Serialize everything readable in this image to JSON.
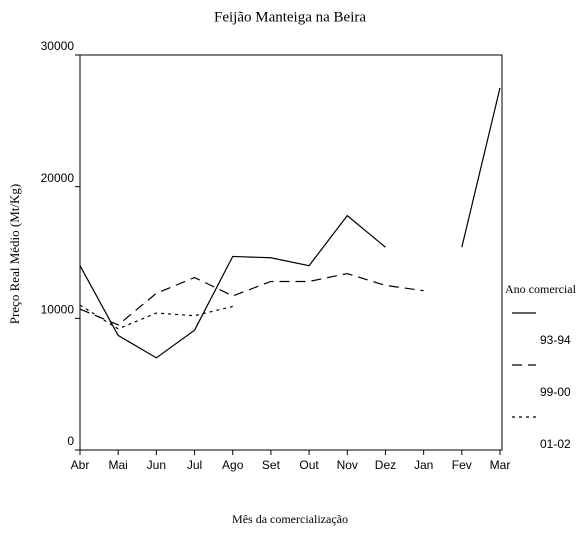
{
  "chart_data": {
    "type": "line",
    "title": "Feijão Manteiga na Beira",
    "xlabel": "Mês da comercialização",
    "ylabel": "Preço Real Médio (Mt/Kg)",
    "categories": [
      "Abr",
      "Mai",
      "Jun",
      "Jul",
      "Ago",
      "Set",
      "Out",
      "Nov",
      "Dez",
      "Jan",
      "Fev",
      "Mar"
    ],
    "ylim": [
      0,
      30000
    ],
    "yticks": [
      0,
      10000,
      20000,
      30000
    ],
    "legend": "right",
    "legend_title": "Ano comercial",
    "series": [
      {
        "name": "93-94",
        "color": "#000000",
        "dash": "solid",
        "values": [
          14000,
          8700,
          7000,
          9100,
          14700,
          14600,
          14000,
          17800,
          15400,
          null,
          15400,
          27500
        ]
      },
      {
        "name": "99-00",
        "color": "#000000",
        "dash": "dashed",
        "values": [
          10700,
          9500,
          11900,
          13100,
          11700,
          12800,
          12800,
          13400,
          12500,
          12100,
          null,
          null
        ]
      },
      {
        "name": "01-02",
        "color": "#000000",
        "dash": "dotted",
        "values": [
          11000,
          9200,
          10400,
          10200,
          10900,
          null,
          null,
          null,
          null,
          null,
          null,
          null
        ]
      }
    ]
  }
}
